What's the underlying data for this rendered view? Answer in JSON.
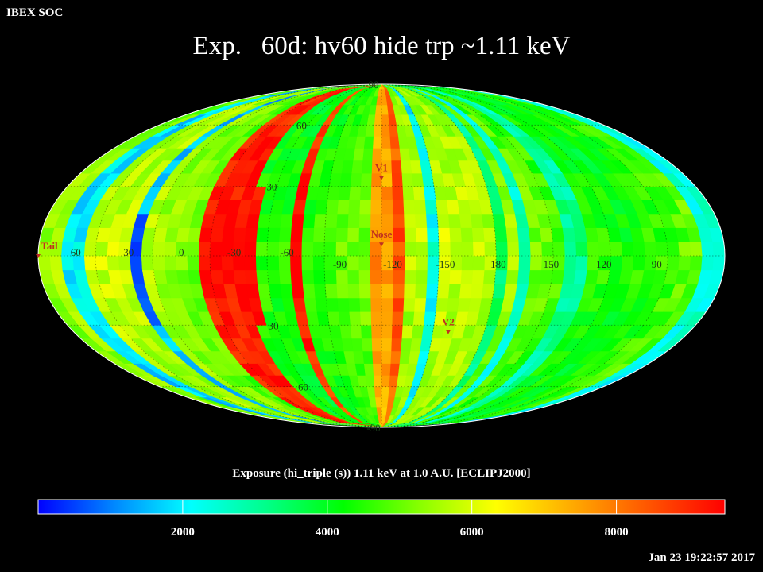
{
  "header": {
    "corner_label": "IBEX SOC",
    "title": "Exp.   60d: hv60 hide trp ~1.11 keV"
  },
  "map": {
    "projection": "mollweide",
    "center_longitude": -105,
    "cell_width_deg": 6,
    "longitude_labels": [
      "60",
      "30",
      "0",
      "-30",
      "-60",
      "-90",
      "-120",
      "-150",
      "180",
      "150",
      "120",
      "90"
    ],
    "latitude_labels": [
      "90",
      "60",
      "30",
      "-30",
      "-60",
      "-90"
    ],
    "markers": [
      {
        "label": "V1",
        "lon": -105,
        "lat": 34,
        "color": "#c03020"
      },
      {
        "label": "Nose",
        "lon": -105,
        "lat": 5,
        "color": "#c03020"
      },
      {
        "label": "V2",
        "lon": -144,
        "lat": -33,
        "color": "#c03020"
      },
      {
        "label": "Tail",
        "lon": 75,
        "lat": 0,
        "color": "#c03020"
      }
    ]
  },
  "colorbar": {
    "label": "Exposure (hi_triple (s))  1.11 keV at 1.0 A.U. [ECLIPJ2000]",
    "min": 0,
    "max": 9500,
    "ticks": [
      "2000",
      "4000",
      "6000",
      "8000"
    ],
    "tick_values": [
      2000,
      4000,
      6000,
      8000
    ],
    "stops": [
      "#0000ff",
      "#0088ff",
      "#00ffff",
      "#00ff88",
      "#00ff00",
      "#88ff00",
      "#ffff00",
      "#ffaa00",
      "#ff5500",
      "#ff0000"
    ]
  },
  "footer": {
    "timestamp": "Jan 23 19:22:57 2017"
  }
}
